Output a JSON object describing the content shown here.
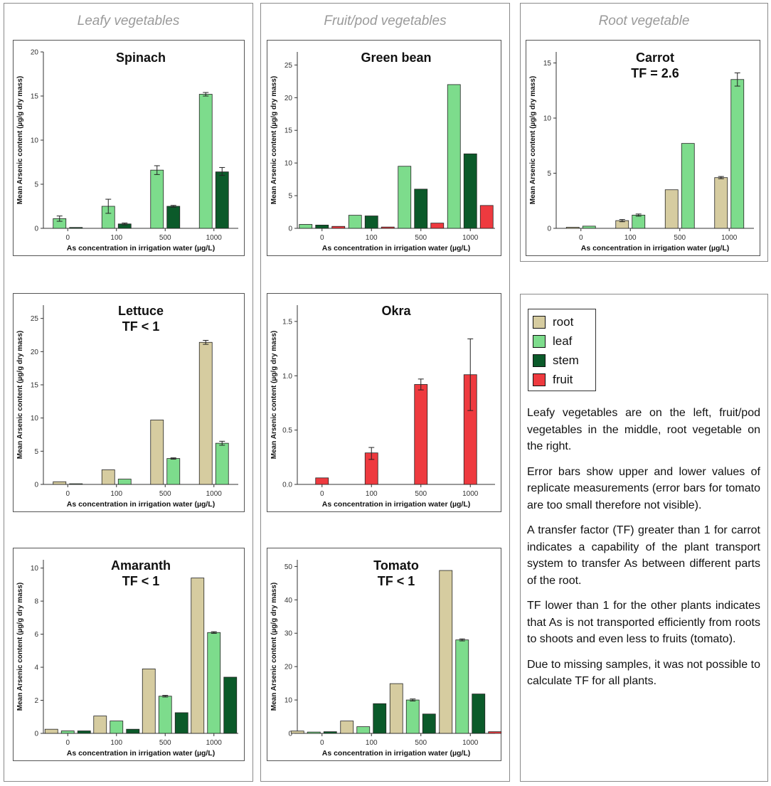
{
  "sections": [
    {
      "title": "Leafy vegetables"
    },
    {
      "title": "Fruit/pod vegetables"
    },
    {
      "title": "Root vegetable"
    }
  ],
  "colors": {
    "root": "#d6cca0",
    "leaf": "#7ddc8c",
    "stem": "#0b5a2a",
    "fruit": "#ee3a3f"
  },
  "legend": [
    {
      "key": "root",
      "label": "root"
    },
    {
      "key": "leaf",
      "label": "leaf"
    },
    {
      "key": "stem",
      "label": "stem"
    },
    {
      "key": "fruit",
      "label": "fruit"
    }
  ],
  "paragraphs": [
    "Leafy vegetables are on the left, fruit/pod vegetables in the middle, root vegetable on the right.",
    "Error bars show upper and lower values of replicate measurements (error bars for tomato are too small therefore not visible).",
    "A transfer factor (TF) greater than 1 for carrot indicates a capability of the plant transport system to transfer As between different parts of the root.",
    "TF lower than 1 for the other plants indicates that As is not transported efficiently from roots to shoots and even less to fruits (tomato).",
    "Due to missing samples, it was not possible to calculate TF for all plants."
  ],
  "chart_data": [
    {
      "id": "spinach",
      "type": "bar",
      "title": "Spinach",
      "subtitle": "",
      "xlabel": "As concentration in irrigation water (µg/L)",
      "ylabel": "Mean Arsenic content (µg/g dry mass)",
      "categories": [
        "0",
        "100",
        "500",
        "1000"
      ],
      "ylim": [
        0,
        20
      ],
      "yticks": [
        0,
        5,
        10,
        15,
        20
      ],
      "series": [
        {
          "name": "leaf",
          "values": [
            1.1,
            2.5,
            6.6,
            15.2
          ],
          "err": [
            [
              0.8,
              1.4
            ],
            [
              1.7,
              3.3
            ],
            [
              6.1,
              7.1
            ],
            [
              15.0,
              15.4
            ]
          ]
        },
        {
          "name": "stem",
          "values": [
            0.1,
            0.5,
            2.5,
            6.4
          ],
          "err": [
            [
              0.1,
              0.1
            ],
            [
              0.4,
              0.6
            ],
            [
              2.4,
              2.6
            ],
            [
              6.0,
              6.9
            ]
          ]
        }
      ]
    },
    {
      "id": "greenbean",
      "type": "bar",
      "title": "Green bean",
      "subtitle": "",
      "xlabel": "As concentration in irrigation water (µg/L)",
      "ylabel": "Mean Arsenic content (µg/g dry mass)",
      "categories": [
        "0",
        "100",
        "500",
        "1000"
      ],
      "ylim": [
        0,
        27
      ],
      "yticks": [
        0,
        5,
        10,
        15,
        20,
        25
      ],
      "series": [
        {
          "name": "leaf",
          "values": [
            0.6,
            2.0,
            9.5,
            22.0
          ]
        },
        {
          "name": "stem",
          "values": [
            0.5,
            1.9,
            6.0,
            11.4
          ]
        },
        {
          "name": "fruit",
          "values": [
            0.3,
            0.2,
            0.8,
            3.5
          ]
        }
      ]
    },
    {
      "id": "carrot",
      "type": "bar",
      "title": "Carrot",
      "subtitle": "TF = 2.6",
      "xlabel": "As concentration in irrigation water (µg/L)",
      "ylabel": "Mean Arsenic content (µg/g dry mass)",
      "categories": [
        "0",
        "100",
        "500",
        "1000"
      ],
      "ylim": [
        0,
        16
      ],
      "yticks": [
        0,
        5,
        10,
        15
      ],
      "series": [
        {
          "name": "root",
          "values": [
            0.1,
            0.7,
            3.5,
            4.6
          ],
          "err": [
            [
              0.1,
              0.1
            ],
            [
              0.6,
              0.8
            ],
            [
              3.5,
              3.5
            ],
            [
              4.5,
              4.7
            ]
          ]
        },
        {
          "name": "leaf",
          "values": [
            0.2,
            1.2,
            7.7,
            13.5
          ],
          "err": [
            [
              0.2,
              0.2
            ],
            [
              1.1,
              1.3
            ],
            [
              7.7,
              7.7
            ],
            [
              12.9,
              14.1
            ]
          ]
        }
      ]
    },
    {
      "id": "lettuce",
      "type": "bar",
      "title": "Lettuce",
      "subtitle": "TF < 1",
      "xlabel": "As concentration in irrigation water (µg/L)",
      "ylabel": "Mean Arsenic content (µg/g dry mass)",
      "categories": [
        "0",
        "100",
        "500",
        "1000"
      ],
      "ylim": [
        0,
        27
      ],
      "yticks": [
        0,
        5,
        10,
        15,
        20,
        25
      ],
      "series": [
        {
          "name": "root",
          "values": [
            0.4,
            2.2,
            9.7,
            21.4
          ],
          "err": [
            [
              0.4,
              0.4
            ],
            [
              2.2,
              2.2
            ],
            [
              9.7,
              9.7
            ],
            [
              21.1,
              21.7
            ]
          ]
        },
        {
          "name": "leaf",
          "values": [
            0.1,
            0.8,
            3.9,
            6.2
          ],
          "err": [
            [
              0.1,
              0.1
            ],
            [
              0.8,
              0.8
            ],
            [
              3.8,
              4.0
            ],
            [
              5.9,
              6.5
            ]
          ]
        }
      ]
    },
    {
      "id": "okra",
      "type": "bar",
      "title": "Okra",
      "subtitle": "",
      "xlabel": "As concentration in irrigation water (µg/L)",
      "ylabel": "Mean Arsenic content (µg/g dry mass)",
      "categories": [
        "0",
        "100",
        "500",
        "1000"
      ],
      "ylim": [
        0,
        1.65
      ],
      "yticks": [
        0.0,
        0.5,
        1.0,
        1.5
      ],
      "series": [
        {
          "name": "fruit",
          "values": [
            0.06,
            0.29,
            0.92,
            1.01
          ],
          "err": [
            [
              0.06,
              0.06
            ],
            [
              0.23,
              0.34
            ],
            [
              0.87,
              0.97
            ],
            [
              0.68,
              1.34
            ]
          ]
        }
      ]
    },
    {
      "id": "amaranth",
      "type": "bar",
      "title": "Amaranth",
      "subtitle": "TF < 1",
      "xlabel": "As concentration in irrigation water (µg/L)",
      "ylabel": "Mean Arsenic content (µg/g dry mass)",
      "categories": [
        "0",
        "100",
        "500",
        "1000"
      ],
      "ylim": [
        0,
        10.5
      ],
      "yticks": [
        0,
        2,
        4,
        6,
        8,
        10
      ],
      "series": [
        {
          "name": "root",
          "values": [
            0.25,
            1.05,
            3.9,
            9.4
          ]
        },
        {
          "name": "leaf",
          "values": [
            0.15,
            0.75,
            2.25,
            6.1
          ],
          "err": [
            [
              0.15,
              0.15
            ],
            [
              0.75,
              0.75
            ],
            [
              2.2,
              2.3
            ],
            [
              6.05,
              6.15
            ]
          ]
        },
        {
          "name": "stem",
          "values": [
            0.15,
            0.25,
            1.25,
            3.4
          ]
        }
      ]
    },
    {
      "id": "tomato",
      "type": "bar",
      "title": "Tomato",
      "subtitle": "TF < 1",
      "xlabel": "As concentration in irrigation water (µg/L)",
      "ylabel": "Mean Arsenic content (µg/g dry mass)",
      "categories": [
        "0",
        "100",
        "500",
        "1000"
      ],
      "ylim": [
        0,
        52
      ],
      "yticks": [
        0,
        10,
        20,
        30,
        40,
        50
      ],
      "series": [
        {
          "name": "root",
          "values": [
            0.7,
            3.7,
            14.9,
            48.8
          ]
        },
        {
          "name": "leaf",
          "values": [
            0.4,
            2.0,
            10.0,
            28.0
          ],
          "err": [
            [
              0.4,
              0.4
            ],
            [
              2.0,
              2.0
            ],
            [
              9.7,
              10.3
            ],
            [
              27.7,
              28.3
            ]
          ]
        },
        {
          "name": "stem",
          "values": [
            0.5,
            8.9,
            5.8,
            11.8
          ]
        },
        {
          "name": "fruit",
          "values": [
            0.1,
            0.1,
            0.2,
            0.5
          ]
        }
      ]
    }
  ]
}
